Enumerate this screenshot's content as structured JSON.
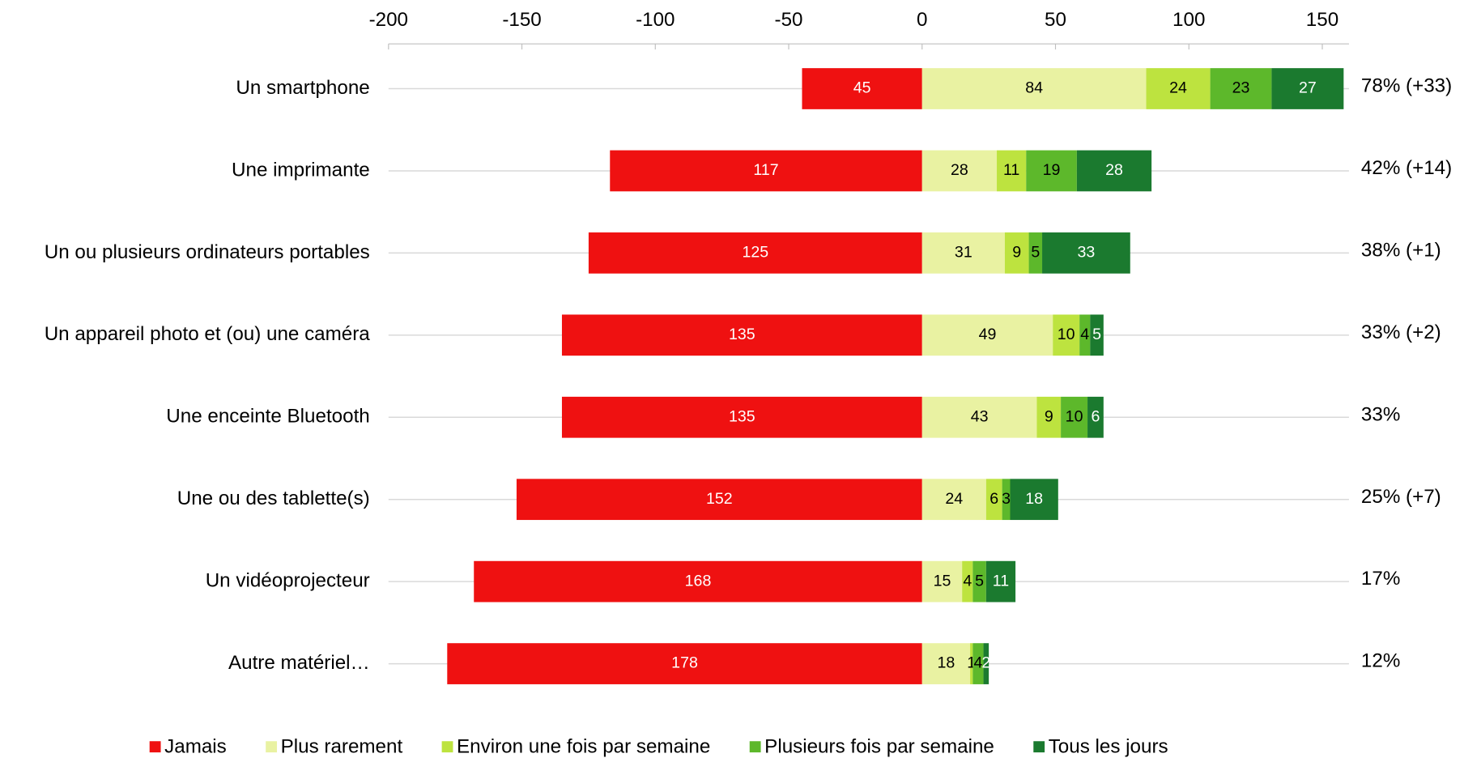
{
  "chart_data": {
    "type": "diverging_stacked_bar",
    "categories": [
      "Un smartphone",
      "Une imprimante",
      "Un ou plusieurs ordinateurs portables",
      "Un appareil photo et (ou) une caméra",
      "Une enceinte Bluetooth",
      "Une ou des tablette(s)",
      "Un vidéoprojecteur",
      "Autre matériel…"
    ],
    "series": [
      {
        "name": "Jamais",
        "color": "#ef1111",
        "label_color": "#ffffff",
        "values": [
          -45,
          -117,
          -125,
          -135,
          -135,
          -152,
          -168,
          -178
        ],
        "value_labels": [
          "45",
          "117",
          "125",
          "135",
          "135",
          "152",
          "168",
          "178"
        ]
      },
      {
        "name": "Plus rarement",
        "color": "#e9f2a2",
        "label_color": "#000000",
        "values": [
          84,
          28,
          31,
          49,
          43,
          24,
          15,
          18
        ]
      },
      {
        "name": "Environ une fois par semaine",
        "color": "#bde33f",
        "label_color": "#000000",
        "values": [
          24,
          11,
          9,
          10,
          9,
          6,
          4,
          1
        ]
      },
      {
        "name": "Plusieurs fois par semaine",
        "color": "#5db82b",
        "label_color": "#000000",
        "values": [
          23,
          19,
          5,
          4,
          10,
          3,
          5,
          4
        ]
      },
      {
        "name": "Tous les jours",
        "color": "#1b7a2f",
        "label_color": "#ffffff",
        "values": [
          27,
          28,
          33,
          5,
          6,
          18,
          11,
          2
        ]
      }
    ],
    "annotations": [
      "78% (+33)",
      "42% (+14)",
      "38% (+1)",
      "33% (+2)",
      "33%",
      "25% (+7)",
      "17%",
      "12%"
    ],
    "xlim": [
      -200,
      160
    ],
    "xticks": [
      -200,
      -150,
      -100,
      -50,
      0,
      50,
      100,
      150
    ],
    "grid": true,
    "legend": "bottom"
  }
}
